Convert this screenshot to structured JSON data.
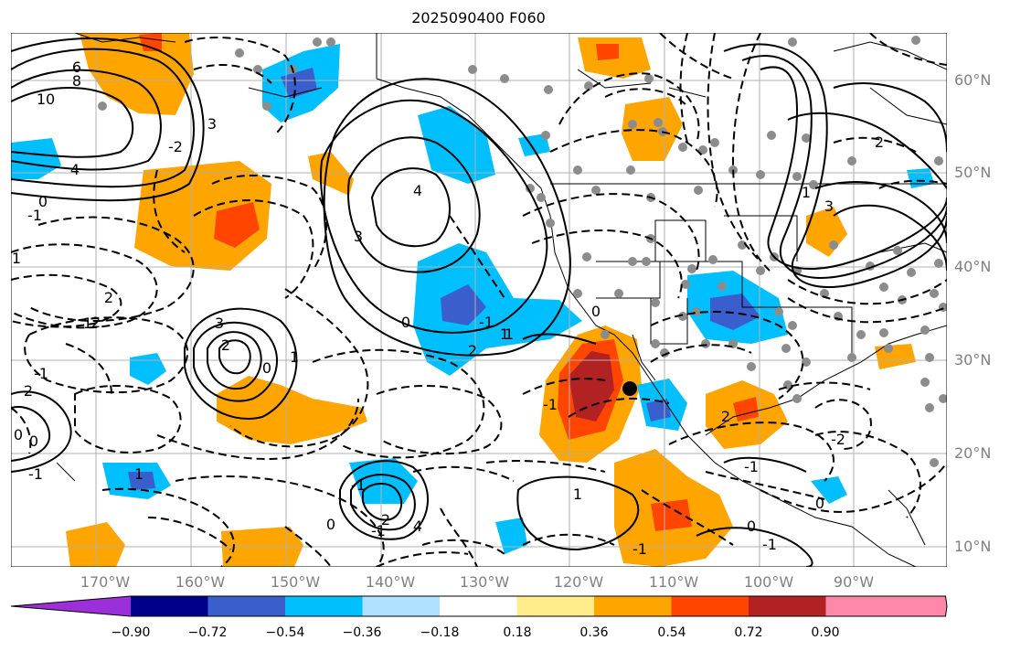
{
  "title": "2025090400 F060",
  "lat_labels": [
    "60°N",
    "50°N",
    "40°N",
    "30°N",
    "20°N",
    "10°N"
  ],
  "lon_labels": [
    "170°W",
    "160°W",
    "150°W",
    "140°W",
    "130°W",
    "120°W",
    "110°W",
    "100°W",
    "90°W"
  ],
  "colorbar": {
    "colors": [
      "#9b30d9",
      "#00008b",
      "#3a5fcd",
      "#00bfff",
      "#b0e2ff",
      "#ffffff",
      "#ffec8b",
      "#ffa500",
      "#ff4500",
      "#b22222",
      "#ff88aa"
    ],
    "labels": [
      "−0.90",
      "−0.72",
      "−0.54",
      "−0.36",
      "−0.18",
      "0.18",
      "0.36",
      "0.54",
      "0.72",
      "0.90"
    ]
  },
  "contour_labels": [
    "6",
    "8",
    "10",
    "4",
    "0",
    "-1",
    "1",
    "2",
    "3",
    "-2",
    "4",
    "3",
    "0",
    "2",
    "1",
    "-1",
    "2",
    "3",
    "2",
    "0",
    "1",
    "0",
    "-1",
    "2",
    "1",
    "0",
    "-1",
    "1",
    "-1",
    "2",
    "-1",
    "0",
    "4",
    "3",
    "2",
    "1",
    "0",
    "1",
    "-1",
    "2",
    "-2",
    "-1",
    "0",
    "1",
    "-1",
    "0",
    "-1"
  ],
  "colors": {
    "contour": "#000000",
    "grid": "#b0b0b0",
    "station": "#8c8c8c",
    "marker": "#000000",
    "orange": "#ffa500",
    "red": "#ff4500",
    "darkred": "#b22222",
    "blue": "#00bfff",
    "medblue": "#3a5fcd"
  }
}
